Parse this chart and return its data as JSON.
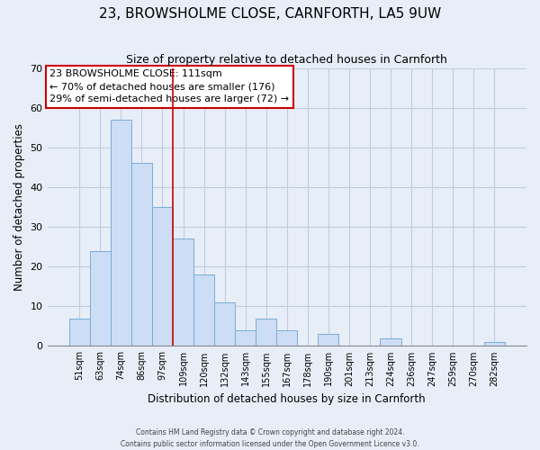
{
  "title": "23, BROWSHOLME CLOSE, CARNFORTH, LA5 9UW",
  "subtitle": "Size of property relative to detached houses in Carnforth",
  "xlabel": "Distribution of detached houses by size in Carnforth",
  "ylabel": "Number of detached properties",
  "categories": [
    "51sqm",
    "63sqm",
    "74sqm",
    "86sqm",
    "97sqm",
    "109sqm",
    "120sqm",
    "132sqm",
    "143sqm",
    "155sqm",
    "167sqm",
    "178sqm",
    "190sqm",
    "201sqm",
    "213sqm",
    "224sqm",
    "236sqm",
    "247sqm",
    "259sqm",
    "270sqm",
    "282sqm"
  ],
  "values": [
    7,
    24,
    57,
    46,
    35,
    27,
    18,
    11,
    4,
    7,
    4,
    0,
    3,
    0,
    0,
    2,
    0,
    0,
    0,
    0,
    1
  ],
  "bar_color": "#ccddf5",
  "bar_edgecolor": "#7aadd6",
  "ylim": [
    0,
    70
  ],
  "yticks": [
    0,
    10,
    20,
    30,
    40,
    50,
    60,
    70
  ],
  "annotation_line1": "23 BROWSHOLME CLOSE: 111sqm",
  "annotation_line2": "← 70% of detached houses are smaller (176)",
  "annotation_line3": "29% of semi-detached houses are larger (72) →",
  "vline_color": "#cc0000",
  "annotation_box_edgecolor": "#cc0000",
  "footer1": "Contains HM Land Registry data © Crown copyright and database right 2024.",
  "footer2": "Contains public sector information licensed under the Open Government Licence v3.0.",
  "background_color": "#e8eef8",
  "plot_background": "#e8eef8",
  "grid_color": "#c0cce0",
  "vline_x_index": 4.5
}
